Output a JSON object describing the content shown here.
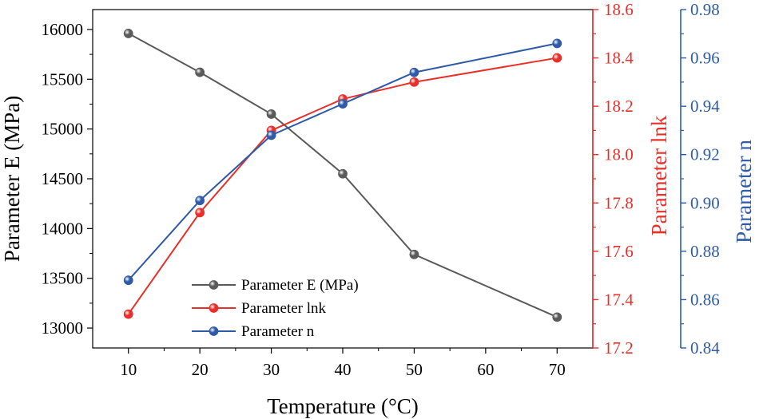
{
  "chart_data": {
    "type": "line",
    "x": [
      10,
      20,
      30,
      40,
      50,
      70
    ],
    "xlabel": "Temperature (°C)",
    "xlim": [
      5,
      75
    ],
    "xticks": [
      10,
      20,
      30,
      40,
      50,
      60,
      70
    ],
    "axes": [
      {
        "id": "E",
        "side": "left",
        "label": "Parameter E (MPa)",
        "color": "#000000",
        "ylim": [
          12800,
          16200
        ],
        "ticks": [
          13000,
          13500,
          14000,
          14500,
          15000,
          15500,
          16000
        ]
      },
      {
        "id": "lnk",
        "side": "right",
        "label": "Parameter lnk",
        "color": "#e8302a",
        "ylim": [
          17.2,
          18.6
        ],
        "ticks": [
          "17.2",
          "17.4",
          "17.6",
          "17.8",
          "18.0",
          "18.2",
          "18.4",
          "18.6"
        ]
      },
      {
        "id": "n",
        "side": "right-offset",
        "label": "Parameter n",
        "color": "#2e5aa8",
        "ylim": [
          0.84,
          0.98
        ],
        "ticks": [
          "0.84",
          "0.86",
          "0.88",
          "0.90",
          "0.92",
          "0.94",
          "0.96",
          "0.98"
        ]
      }
    ],
    "series": [
      {
        "name": "Parameter E (MPa)",
        "axis": "E",
        "color": "#5a5a5a",
        "values": [
          15960,
          15570,
          15150,
          14550,
          13740,
          13110
        ]
      },
      {
        "name": "Parameter lnk",
        "axis": "lnk",
        "color": "#e8302a",
        "values": [
          17.34,
          17.76,
          18.1,
          18.23,
          18.3,
          18.4
        ]
      },
      {
        "name": "Parameter n",
        "axis": "n",
        "color": "#2e5aa8",
        "values": [
          0.868,
          0.901,
          0.928,
          0.941,
          0.954,
          0.966
        ]
      }
    ],
    "legend": {
      "position": "bottom-left"
    }
  }
}
